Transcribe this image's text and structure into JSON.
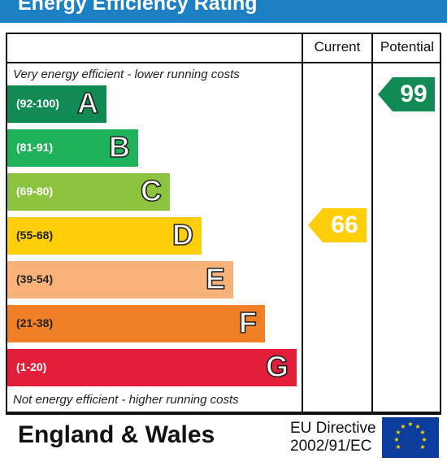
{
  "header": {
    "title": "Energy Efficiency Rating"
  },
  "columns": {
    "current": "Current",
    "potential": "Potential"
  },
  "labels": {
    "top": "Very energy efficient - lower running costs",
    "bottom": "Not energy efficient - higher running costs"
  },
  "bands": [
    {
      "letter": "A",
      "range": "(92-100)",
      "color": "#118a53"
    },
    {
      "letter": "B",
      "range": "(81-91)",
      "color": "#1fb25a"
    },
    {
      "letter": "C",
      "range": "(69-80)",
      "color": "#8cc43f"
    },
    {
      "letter": "D",
      "range": "(55-68)",
      "color": "#fecd0b"
    },
    {
      "letter": "E",
      "range": "(39-54)",
      "color": "#f8b27a"
    },
    {
      "letter": "F",
      "range": "(21-38)",
      "color": "#f07f26"
    },
    {
      "letter": "G",
      "range": "(1-20)",
      "color": "#e31e3a"
    }
  ],
  "ratings": {
    "current": {
      "value": "66",
      "color": "#fecd0b"
    },
    "potential": {
      "value": "99",
      "color": "#118a53"
    }
  },
  "footer": {
    "region": "England & Wales",
    "directive_line1": "EU Directive",
    "directive_line2": "2002/91/EC"
  }
}
